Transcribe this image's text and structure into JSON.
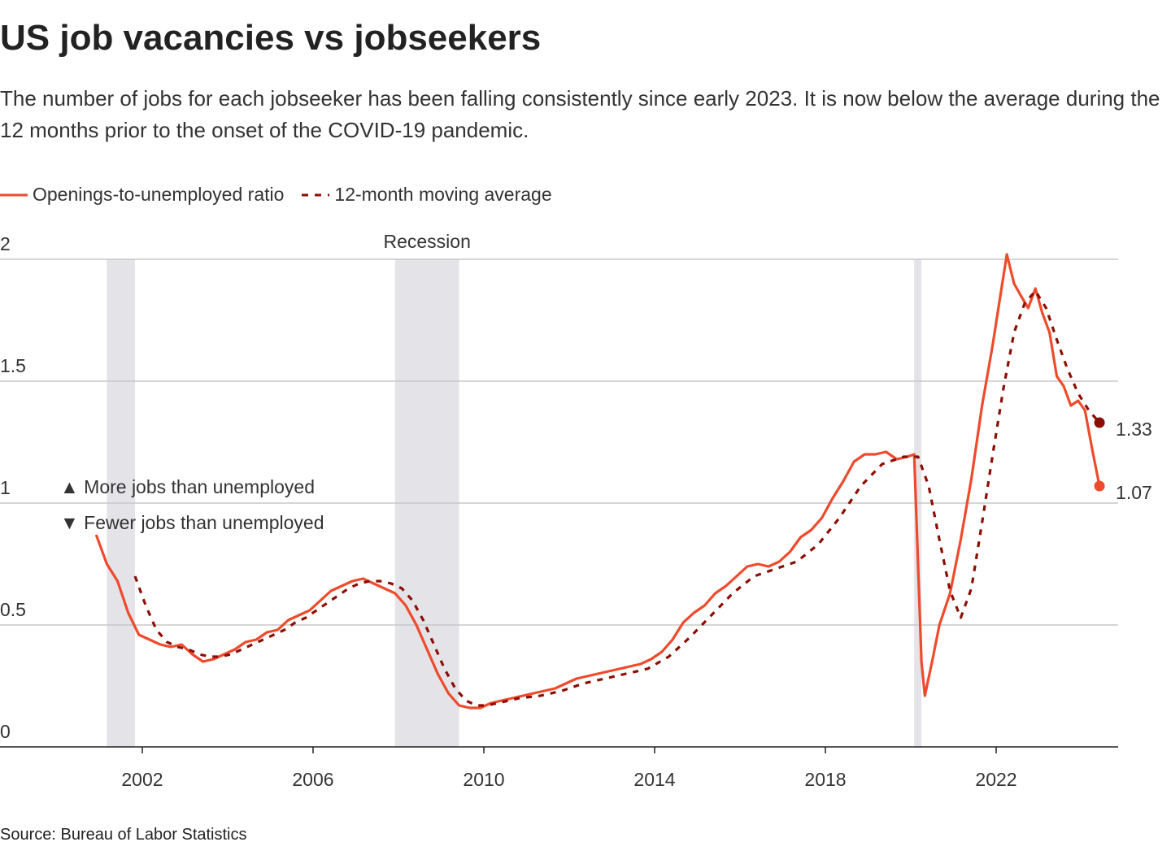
{
  "chart_data": {
    "type": "line",
    "title": "US job vacancies vs jobseekers",
    "subtitle": "The number of jobs for each jobseeker has been falling consistently since early 2023. It is now below the average during the 12 months prior to the onset of the COVID-19 pandemic.",
    "source": "Source: Bureau of Labor Statistics",
    "xlim": [
      1998.667,
      2024.857
    ],
    "xticks": [
      2002,
      2006,
      2010,
      2014,
      2018,
      2022
    ],
    "ylim": [
      0,
      2
    ],
    "yticks": [
      0,
      0.5,
      1,
      1.5,
      2
    ],
    "grid": true,
    "legend": "top",
    "recession_label": "Recession",
    "recessions": [
      [
        2001.17,
        2001.83
      ],
      [
        2007.92,
        2009.42
      ],
      [
        2020.08,
        2020.25
      ]
    ],
    "annotations": [
      "▲ More jobs than unemployed",
      "▼ Fewer jobs than unemployed"
    ],
    "series": [
      {
        "name": "Openings-to-unemployed ratio",
        "color": "#ee4a2c",
        "dashed": false,
        "x": [
          2000.92,
          2001.17,
          2001.42,
          2001.67,
          2001.92,
          2002.17,
          2002.42,
          2002.67,
          2002.92,
          2003.17,
          2003.42,
          2003.67,
          2003.92,
          2004.17,
          2004.42,
          2004.67,
          2004.92,
          2005.17,
          2005.42,
          2005.67,
          2005.92,
          2006.17,
          2006.42,
          2006.67,
          2006.92,
          2007.17,
          2007.42,
          2007.67,
          2007.92,
          2008.17,
          2008.42,
          2008.67,
          2008.92,
          2009.17,
          2009.42,
          2009.67,
          2009.92,
          2010.17,
          2010.42,
          2010.67,
          2010.92,
          2011.17,
          2011.42,
          2011.67,
          2011.92,
          2012.17,
          2012.42,
          2012.67,
          2012.92,
          2013.17,
          2013.42,
          2013.67,
          2013.92,
          2014.17,
          2014.42,
          2014.67,
          2014.92,
          2015.17,
          2015.42,
          2015.67,
          2015.92,
          2016.17,
          2016.42,
          2016.67,
          2016.92,
          2017.17,
          2017.42,
          2017.67,
          2017.92,
          2018.17,
          2018.42,
          2018.67,
          2018.92,
          2019.17,
          2019.42,
          2019.67,
          2019.92,
          2020.08,
          2020.25,
          2020.33,
          2020.5,
          2020.67,
          2020.92,
          2021.17,
          2021.42,
          2021.67,
          2021.92,
          2022.08,
          2022.25,
          2022.42,
          2022.58,
          2022.75,
          2022.92,
          2023.08,
          2023.25,
          2023.42,
          2023.58,
          2023.75,
          2023.92,
          2024.08,
          2024.25,
          2024.42
        ],
        "values": [
          0.87,
          0.75,
          0.68,
          0.55,
          0.46,
          0.44,
          0.42,
          0.41,
          0.42,
          0.38,
          0.35,
          0.36,
          0.38,
          0.4,
          0.43,
          0.44,
          0.47,
          0.48,
          0.52,
          0.54,
          0.56,
          0.6,
          0.64,
          0.66,
          0.68,
          0.69,
          0.67,
          0.65,
          0.63,
          0.58,
          0.5,
          0.4,
          0.3,
          0.22,
          0.17,
          0.16,
          0.16,
          0.18,
          0.19,
          0.2,
          0.21,
          0.22,
          0.23,
          0.24,
          0.26,
          0.28,
          0.29,
          0.3,
          0.31,
          0.32,
          0.33,
          0.34,
          0.36,
          0.39,
          0.44,
          0.51,
          0.55,
          0.58,
          0.63,
          0.66,
          0.7,
          0.74,
          0.75,
          0.74,
          0.76,
          0.8,
          0.86,
          0.89,
          0.94,
          1.02,
          1.09,
          1.17,
          1.2,
          1.2,
          1.21,
          1.18,
          1.19,
          1.2,
          0.35,
          0.21,
          0.35,
          0.5,
          0.63,
          0.85,
          1.1,
          1.4,
          1.65,
          1.83,
          2.02,
          1.9,
          1.85,
          1.8,
          1.88,
          1.78,
          1.7,
          1.52,
          1.48,
          1.4,
          1.42,
          1.38,
          1.22,
          1.07
        ]
      },
      {
        "name": "12-month moving average",
        "color": "#8b0e04",
        "dashed": true,
        "x": [
          2001.83,
          2002.08,
          2002.33,
          2002.58,
          2002.83,
          2003.08,
          2003.33,
          2003.58,
          2003.83,
          2004.08,
          2004.33,
          2004.58,
          2004.83,
          2005.08,
          2005.33,
          2005.58,
          2005.83,
          2006.08,
          2006.33,
          2006.58,
          2006.83,
          2007.08,
          2007.33,
          2007.58,
          2007.83,
          2008.08,
          2008.33,
          2008.58,
          2008.83,
          2009.08,
          2009.33,
          2009.58,
          2009.83,
          2010.08,
          2010.33,
          2010.58,
          2010.83,
          2011.33,
          2011.83,
          2012.33,
          2012.83,
          2013.33,
          2013.83,
          2014.33,
          2014.83,
          2015.33,
          2015.83,
          2016.33,
          2016.83,
          2017.33,
          2017.83,
          2018.33,
          2018.83,
          2019.33,
          2019.83,
          2020.17,
          2020.42,
          2020.67,
          2020.92,
          2021.17,
          2021.42,
          2021.67,
          2021.92,
          2022.17,
          2022.42,
          2022.67,
          2022.92,
          2023.17,
          2023.42,
          2023.67,
          2023.92,
          2024.17,
          2024.42
        ],
        "values": [
          0.7,
          0.58,
          0.48,
          0.43,
          0.41,
          0.4,
          0.38,
          0.37,
          0.37,
          0.38,
          0.4,
          0.42,
          0.44,
          0.46,
          0.48,
          0.51,
          0.53,
          0.56,
          0.59,
          0.62,
          0.65,
          0.67,
          0.68,
          0.68,
          0.67,
          0.65,
          0.6,
          0.52,
          0.42,
          0.32,
          0.24,
          0.19,
          0.17,
          0.17,
          0.18,
          0.19,
          0.2,
          0.21,
          0.23,
          0.26,
          0.28,
          0.3,
          0.32,
          0.37,
          0.45,
          0.54,
          0.63,
          0.7,
          0.73,
          0.76,
          0.83,
          0.94,
          1.07,
          1.16,
          1.19,
          1.19,
          1.07,
          0.85,
          0.64,
          0.53,
          0.65,
          0.92,
          1.2,
          1.47,
          1.7,
          1.82,
          1.87,
          1.8,
          1.67,
          1.55,
          1.45,
          1.38,
          1.33
        ]
      }
    ]
  }
}
